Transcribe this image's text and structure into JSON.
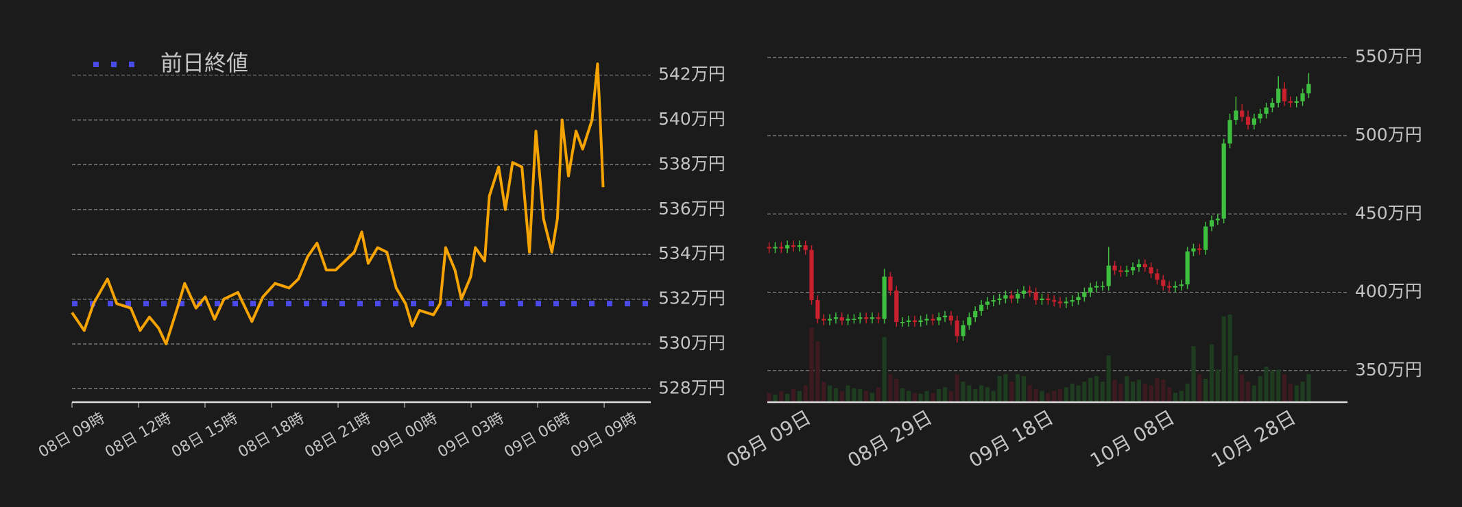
{
  "chart_data": [
    {
      "type": "line",
      "x": [
        0,
        0.55,
        0.97,
        1.6,
        2.02,
        2.65,
        3.07,
        3.49,
        3.91,
        4.24,
        4.75,
        5.08,
        5.59,
        6.01,
        6.43,
        6.85,
        7.48,
        8.11,
        8.61,
        9.16,
        9.79,
        10.21,
        10.63,
        11.05,
        11.47,
        11.89,
        12.31,
        12.73,
        13.07,
        13.36,
        13.78,
        14.2,
        14.62,
        15.04,
        15.34,
        15.67,
        16.3,
        16.6,
        16.85,
        17.27,
        17.56,
        17.98,
        18.19,
        18.61,
        18.82,
        19.24,
        19.54,
        19.87,
        20.29,
        20.63,
        20.92,
        21.26,
        21.64,
        21.89,
        22.1,
        22.39,
        22.73,
        23.03,
        23.45,
        23.7,
        23.82,
        23.95
      ],
      "values": [
        531.4,
        530.6,
        531.8,
        532.9,
        531.8,
        531.6,
        530.6,
        531.2,
        530.7,
        530.0,
        531.6,
        532.7,
        531.6,
        532.1,
        531.1,
        532.0,
        532.3,
        531.0,
        532.1,
        532.7,
        532.5,
        532.9,
        533.9,
        534.5,
        533.3,
        533.3,
        533.7,
        534.1,
        535.0,
        533.6,
        534.3,
        534.1,
        532.5,
        531.8,
        530.8,
        531.5,
        531.3,
        531.8,
        534.3,
        533.3,
        532.0,
        533.0,
        534.3,
        533.7,
        536.6,
        537.9,
        536.0,
        538.1,
        537.9,
        534.1,
        539.5,
        535.6,
        534.1,
        535.6,
        540.0,
        537.5,
        539.5,
        538.7,
        540.0,
        542.5,
        540.0,
        537.0
      ],
      "color": "#f5a300",
      "reference": {
        "name": "前日終値",
        "value": 531.8,
        "color": "#4a4ae8"
      },
      "xlim": [
        0,
        26.1
      ],
      "xticks": [
        {
          "value": 0,
          "label": "08日 09時"
        },
        {
          "value": 3,
          "label": "08日 12時"
        },
        {
          "value": 6,
          "label": "08日 15時"
        },
        {
          "value": 9,
          "label": "08日 18時"
        },
        {
          "value": 12,
          "label": "08日 21時"
        },
        {
          "value": 15,
          "label": "09日 00時"
        },
        {
          "value": 18,
          "label": "09日 03時"
        },
        {
          "value": 21,
          "label": "09日 06時"
        },
        {
          "value": 24,
          "label": "09日 09時"
        }
      ],
      "ylim": [
        527.4,
        543
      ],
      "yticks": [
        {
          "value": 528,
          "label": "528万円"
        },
        {
          "value": 530,
          "label": "530万円"
        },
        {
          "value": 532,
          "label": "532万円"
        },
        {
          "value": 534,
          "label": "534万円"
        },
        {
          "value": 536,
          "label": "536万円"
        },
        {
          "value": 538,
          "label": "538万円"
        },
        {
          "value": 540,
          "label": "540万円"
        },
        {
          "value": 542,
          "label": "542万円"
        }
      ],
      "grid": true
    },
    {
      "type": "candlestick",
      "categories": [
        "08月 09日",
        null,
        null,
        null,
        null,
        null,
        null,
        null,
        null,
        null,
        null,
        null,
        null,
        null,
        null,
        null,
        null,
        null,
        null,
        null,
        "08月 29日",
        null,
        null,
        null,
        null,
        null,
        null,
        null,
        null,
        null,
        null,
        null,
        null,
        null,
        null,
        null,
        null,
        null,
        null,
        null,
        "09月 18日",
        null,
        null,
        null,
        null,
        null,
        null,
        null,
        null,
        null,
        null,
        null,
        null,
        null,
        null,
        null,
        null,
        null,
        null,
        null,
        "10月 08日",
        null,
        null,
        null,
        null,
        null,
        null,
        null,
        null,
        null,
        null,
        null,
        null,
        null,
        null,
        null,
        null,
        null,
        null,
        null,
        "10月 28日",
        null,
        null,
        null,
        null,
        null,
        null,
        null,
        null,
        null
      ],
      "open": [
        429,
        428,
        429,
        428,
        430,
        429,
        430,
        427,
        395,
        383,
        382,
        383,
        384,
        382,
        383,
        383,
        384,
        383,
        384,
        383,
        410,
        401,
        381,
        381,
        382,
        381,
        382,
        383,
        382,
        384,
        385,
        382,
        372,
        379,
        384,
        388,
        392,
        394,
        395,
        396,
        398,
        396,
        399,
        401,
        400,
        395,
        396,
        395,
        394,
        393,
        394,
        395,
        397,
        400,
        403,
        404,
        404,
        417,
        414,
        413,
        414,
        416,
        418,
        416,
        412,
        408,
        404,
        403,
        404,
        405,
        426,
        428,
        427,
        442,
        446,
        447,
        495,
        510,
        516,
        512,
        507,
        511,
        514,
        518,
        521,
        530,
        522,
        521,
        522,
        527
      ],
      "high": [
        432,
        432,
        432,
        433,
        433,
        433,
        433,
        430,
        398,
        386,
        386,
        387,
        387,
        386,
        386,
        387,
        387,
        387,
        387,
        415,
        413,
        404,
        384,
        385,
        385,
        385,
        386,
        386,
        387,
        388,
        388,
        385,
        382,
        387,
        391,
        395,
        397,
        398,
        399,
        401,
        401,
        402,
        404,
        404,
        403,
        399,
        399,
        398,
        397,
        397,
        398,
        400,
        403,
        406,
        407,
        407,
        429,
        420,
        417,
        417,
        419,
        421,
        421,
        419,
        415,
        411,
        407,
        407,
        408,
        429,
        431,
        431,
        445,
        449,
        450,
        498,
        514,
        525,
        520,
        516,
        514,
        517,
        521,
        524,
        538,
        534,
        525,
        525,
        530,
        540
      ],
      "low": [
        425,
        425,
        425,
        425,
        426,
        426,
        424,
        392,
        380,
        379,
        379,
        380,
        379,
        379,
        380,
        380,
        380,
        380,
        380,
        380,
        398,
        378,
        378,
        378,
        378,
        378,
        379,
        379,
        379,
        381,
        379,
        368,
        369,
        376,
        381,
        385,
        389,
        391,
        392,
        393,
        393,
        393,
        396,
        397,
        392,
        392,
        392,
        391,
        390,
        390,
        391,
        392,
        394,
        397,
        400,
        401,
        401,
        411,
        410,
        410,
        411,
        413,
        413,
        409,
        405,
        401,
        400,
        400,
        401,
        402,
        423,
        424,
        424,
        439,
        443,
        444,
        492,
        507,
        509,
        504,
        504,
        508,
        511,
        515,
        518,
        519,
        518,
        518,
        519,
        524
      ],
      "close": [
        428,
        429,
        428,
        430,
        429,
        430,
        427,
        395,
        383,
        382,
        383,
        384,
        382,
        383,
        383,
        384,
        383,
        384,
        383,
        410,
        401,
        381,
        381,
        382,
        381,
        382,
        383,
        382,
        384,
        385,
        382,
        372,
        379,
        384,
        388,
        392,
        394,
        395,
        396,
        398,
        396,
        399,
        401,
        400,
        395,
        396,
        395,
        394,
        393,
        394,
        395,
        397,
        400,
        403,
        404,
        404,
        417,
        414,
        413,
        414,
        416,
        418,
        416,
        412,
        408,
        404,
        403,
        404,
        405,
        426,
        428,
        427,
        442,
        446,
        447,
        495,
        510,
        516,
        512,
        507,
        511,
        514,
        518,
        521,
        530,
        522,
        521,
        522,
        527,
        533
      ],
      "volume": [
        10,
        8,
        12,
        9,
        14,
        12,
        18,
        80,
        65,
        22,
        18,
        15,
        12,
        18,
        15,
        14,
        12,
        10,
        16,
        70,
        30,
        25,
        15,
        12,
        10,
        9,
        12,
        10,
        14,
        16,
        12,
        30,
        22,
        18,
        14,
        18,
        16,
        12,
        28,
        30,
        22,
        30,
        28,
        18,
        14,
        12,
        10,
        12,
        14,
        16,
        20,
        18,
        22,
        26,
        28,
        22,
        50,
        24,
        20,
        28,
        22,
        24,
        20,
        18,
        26,
        24,
        16,
        10,
        12,
        20,
        60,
        30,
        25,
        62,
        35,
        92,
        94,
        50,
        30,
        22,
        18,
        28,
        38,
        34,
        35,
        30,
        20,
        18,
        22,
        30
      ],
      "up_color": "#3fbf3f",
      "down_color": "#c8202c",
      "ylim": [
        329.8,
        563
      ],
      "yticks": [
        {
          "value": 350,
          "label": "350万円"
        },
        {
          "value": 400,
          "label": "400万円"
        },
        {
          "value": 450,
          "label": "450万円"
        },
        {
          "value": 500,
          "label": "500万円"
        },
        {
          "value": 550,
          "label": "550万円"
        }
      ],
      "grid": true
    }
  ]
}
